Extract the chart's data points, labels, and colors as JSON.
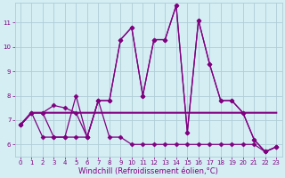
{
  "xlabel": "Windchill (Refroidissement éolien,°C)",
  "background_color": "#d4eef4",
  "grid_color": "#b0ccd4",
  "line_color": "#800080",
  "xlim": [
    -0.5,
    23.5
  ],
  "ylim": [
    5.5,
    11.8
  ],
  "yticks": [
    6,
    7,
    8,
    9,
    10,
    11
  ],
  "xticks": [
    0,
    1,
    2,
    3,
    4,
    5,
    6,
    7,
    8,
    9,
    10,
    11,
    12,
    13,
    14,
    15,
    16,
    17,
    18,
    19,
    20,
    21,
    22,
    23
  ],
  "series": [
    {
      "y": [
        6.8,
        7.3,
        7.3,
        6.3,
        6.3,
        8.0,
        6.3,
        7.8,
        7.8,
        10.3,
        10.8,
        8.0,
        10.3,
        10.3,
        11.7,
        6.5,
        11.1,
        9.3,
        7.8,
        7.8,
        7.3,
        6.2,
        5.7,
        5.9
      ],
      "marker": true,
      "linewidth": 0.9
    },
    {
      "y": [
        6.8,
        7.3,
        7.3,
        7.3,
        7.3,
        7.3,
        7.3,
        7.3,
        7.3,
        7.3,
        7.3,
        7.3,
        7.3,
        7.3,
        7.3,
        7.3,
        7.3,
        7.3,
        7.3,
        7.3,
        7.3,
        7.3,
        7.3,
        7.3
      ],
      "marker": false,
      "linewidth": 1.5
    },
    {
      "y": [
        6.8,
        7.3,
        6.3,
        6.3,
        6.3,
        6.3,
        6.3,
        7.8,
        6.3,
        6.3,
        6.0,
        6.0,
        6.0,
        6.0,
        6.0,
        6.0,
        6.0,
        6.0,
        6.0,
        6.0,
        6.0,
        6.0,
        5.7,
        5.9
      ],
      "marker": true,
      "linewidth": 0.9
    },
    {
      "y": [
        6.8,
        7.3,
        7.3,
        7.6,
        7.5,
        7.3,
        6.3,
        7.8,
        7.8,
        10.3,
        10.8,
        8.0,
        10.3,
        10.3,
        11.7,
        6.5,
        11.1,
        9.3,
        7.8,
        7.8,
        7.3,
        6.2,
        5.7,
        5.9
      ],
      "marker": true,
      "linewidth": 0.9
    }
  ],
  "marker_style": "D",
  "markersize": 2.5,
  "tick_fontsize": 5,
  "label_fontsize": 6
}
